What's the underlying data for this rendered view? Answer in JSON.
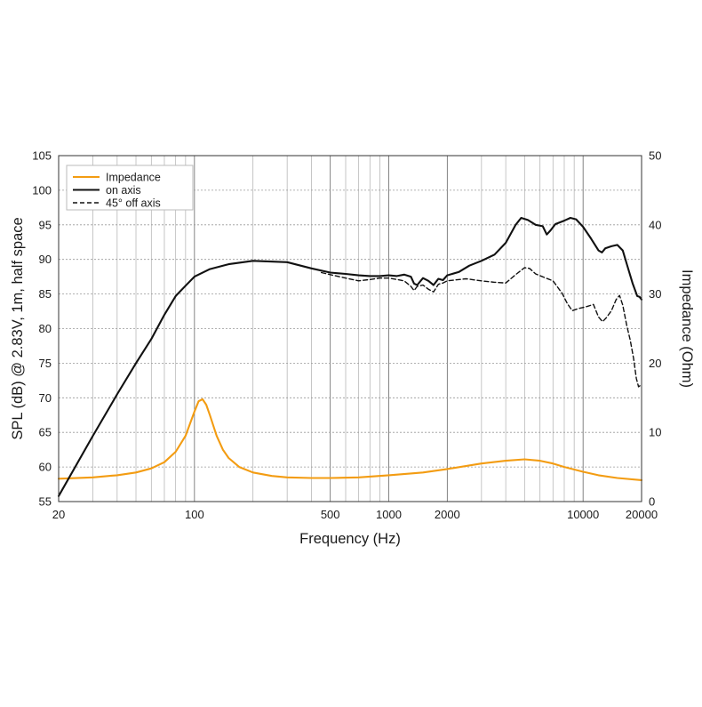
{
  "chart_data": {
    "type": "line",
    "xlabel": "Frequency (Hz)",
    "ylabel": "SPL (dB) @ 2.83V, 1m, half space",
    "y2label": "Impedance (Ohm)",
    "x_scale": "log",
    "xlim": [
      20,
      20000
    ],
    "ylim": [
      55,
      105
    ],
    "y2lim": [
      0,
      50
    ],
    "grid": true,
    "legend_position": "top-left",
    "x_ticks": [
      {
        "value": 20,
        "label": "20"
      },
      {
        "value": 100,
        "label": "100"
      },
      {
        "value": 500,
        "label": "500"
      },
      {
        "value": 1000,
        "label": "1000"
      },
      {
        "value": 2000,
        "label": "2000"
      },
      {
        "value": 10000,
        "label": "10000"
      },
      {
        "value": 20000,
        "label": "20000"
      }
    ],
    "y_ticks": [
      "55",
      "60",
      "65",
      "70",
      "75",
      "80",
      "85",
      "90",
      "95",
      "100",
      "105"
    ],
    "y2_ticks": [
      "0",
      "10",
      "20",
      "30",
      "40",
      "50"
    ],
    "series": [
      {
        "name": "Impedance",
        "axis": "right",
        "color": "#f39c12",
        "style": "solid",
        "points": [
          [
            20,
            3.3
          ],
          [
            30,
            3.5
          ],
          [
            40,
            3.8
          ],
          [
            50,
            4.2
          ],
          [
            60,
            4.8
          ],
          [
            70,
            5.7
          ],
          [
            80,
            7.2
          ],
          [
            90,
            9.5
          ],
          [
            100,
            13
          ],
          [
            105,
            14.5
          ],
          [
            110,
            14.8
          ],
          [
            115,
            14
          ],
          [
            120,
            12.5
          ],
          [
            130,
            9.5
          ],
          [
            140,
            7.5
          ],
          [
            150,
            6.3
          ],
          [
            170,
            5
          ],
          [
            200,
            4.2
          ],
          [
            250,
            3.7
          ],
          [
            300,
            3.5
          ],
          [
            400,
            3.4
          ],
          [
            500,
            3.4
          ],
          [
            700,
            3.5
          ],
          [
            1000,
            3.8
          ],
          [
            1500,
            4.2
          ],
          [
            2000,
            4.7
          ],
          [
            3000,
            5.5
          ],
          [
            4000,
            5.9
          ],
          [
            5000,
            6.1
          ],
          [
            6000,
            5.9
          ],
          [
            7000,
            5.5
          ],
          [
            8000,
            5
          ],
          [
            10000,
            4.3
          ],
          [
            12000,
            3.8
          ],
          [
            15000,
            3.4
          ],
          [
            20000,
            3.1
          ]
        ]
      },
      {
        "name": "on axis",
        "axis": "left",
        "color": "#111111",
        "style": "solid",
        "points": [
          [
            20,
            55.8
          ],
          [
            30,
            64.5
          ],
          [
            40,
            70.5
          ],
          [
            50,
            75
          ],
          [
            60,
            78.5
          ],
          [
            70,
            82
          ],
          [
            80,
            84.7
          ],
          [
            90,
            86.2
          ],
          [
            100,
            87.5
          ],
          [
            120,
            88.6
          ],
          [
            150,
            89.3
          ],
          [
            200,
            89.8
          ],
          [
            300,
            89.6
          ],
          [
            400,
            88.7
          ],
          [
            500,
            88.1
          ],
          [
            600,
            87.9
          ],
          [
            700,
            87.7
          ],
          [
            800,
            87.6
          ],
          [
            900,
            87.6
          ],
          [
            1000,
            87.7
          ],
          [
            1100,
            87.6
          ],
          [
            1200,
            87.8
          ],
          [
            1300,
            87.5
          ],
          [
            1350,
            86.5
          ],
          [
            1400,
            86.3
          ],
          [
            1500,
            87.3
          ],
          [
            1600,
            86.9
          ],
          [
            1700,
            86.3
          ],
          [
            1800,
            87.2
          ],
          [
            1900,
            87
          ],
          [
            2000,
            87.7
          ],
          [
            2300,
            88.2
          ],
          [
            2600,
            89.1
          ],
          [
            3000,
            89.8
          ],
          [
            3500,
            90.7
          ],
          [
            4000,
            92.4
          ],
          [
            4500,
            95
          ],
          [
            4800,
            96
          ],
          [
            5200,
            95.7
          ],
          [
            5700,
            95
          ],
          [
            6200,
            94.8
          ],
          [
            6500,
            93.6
          ],
          [
            6800,
            94.2
          ],
          [
            7200,
            95.1
          ],
          [
            8000,
            95.6
          ],
          [
            8600,
            96
          ],
          [
            9200,
            95.8
          ],
          [
            10000,
            94.7
          ],
          [
            11000,
            93
          ],
          [
            12000,
            91.3
          ],
          [
            12500,
            91
          ],
          [
            13000,
            91.6
          ],
          [
            14000,
            91.9
          ],
          [
            15000,
            92.1
          ],
          [
            16000,
            91.3
          ],
          [
            17000,
            88.8
          ],
          [
            18000,
            86.5
          ],
          [
            19000,
            84.7
          ],
          [
            19500,
            84.6
          ],
          [
            20000,
            84.2
          ]
        ]
      },
      {
        "name": "45° off axis",
        "axis": "left",
        "color": "#111111",
        "style": "dashed",
        "points": [
          [
            450,
            88.1
          ],
          [
            500,
            87.8
          ],
          [
            600,
            87.3
          ],
          [
            700,
            86.9
          ],
          [
            800,
            87.1
          ],
          [
            900,
            87.3
          ],
          [
            1000,
            87.3
          ],
          [
            1100,
            87.1
          ],
          [
            1200,
            86.9
          ],
          [
            1300,
            86.1
          ],
          [
            1350,
            85.5
          ],
          [
            1400,
            86.1
          ],
          [
            1500,
            86.3
          ],
          [
            1600,
            85.7
          ],
          [
            1700,
            85.3
          ],
          [
            1800,
            86.4
          ],
          [
            1900,
            86.6
          ],
          [
            2000,
            86.9
          ],
          [
            2500,
            87.2
          ],
          [
            3000,
            86.9
          ],
          [
            3500,
            86.7
          ],
          [
            4000,
            86.6
          ],
          [
            4500,
            87.8
          ],
          [
            5000,
            88.8
          ],
          [
            5300,
            88.7
          ],
          [
            5700,
            87.9
          ],
          [
            6300,
            87.4
          ],
          [
            7000,
            86.9
          ],
          [
            7800,
            85.1
          ],
          [
            8300,
            83.6
          ],
          [
            8800,
            82.6
          ],
          [
            9500,
            82.9
          ],
          [
            10500,
            83.2
          ],
          [
            11300,
            83.5
          ],
          [
            12000,
            81.7
          ],
          [
            12600,
            81
          ],
          [
            13200,
            81.6
          ],
          [
            14000,
            82.6
          ],
          [
            14800,
            84.2
          ],
          [
            15400,
            84.8
          ],
          [
            16000,
            83.4
          ],
          [
            16800,
            80.4
          ],
          [
            17500,
            78.3
          ],
          [
            18200,
            75.7
          ],
          [
            18800,
            72.8
          ],
          [
            19300,
            71.6
          ],
          [
            20000,
            71.9
          ]
        ]
      }
    ]
  }
}
